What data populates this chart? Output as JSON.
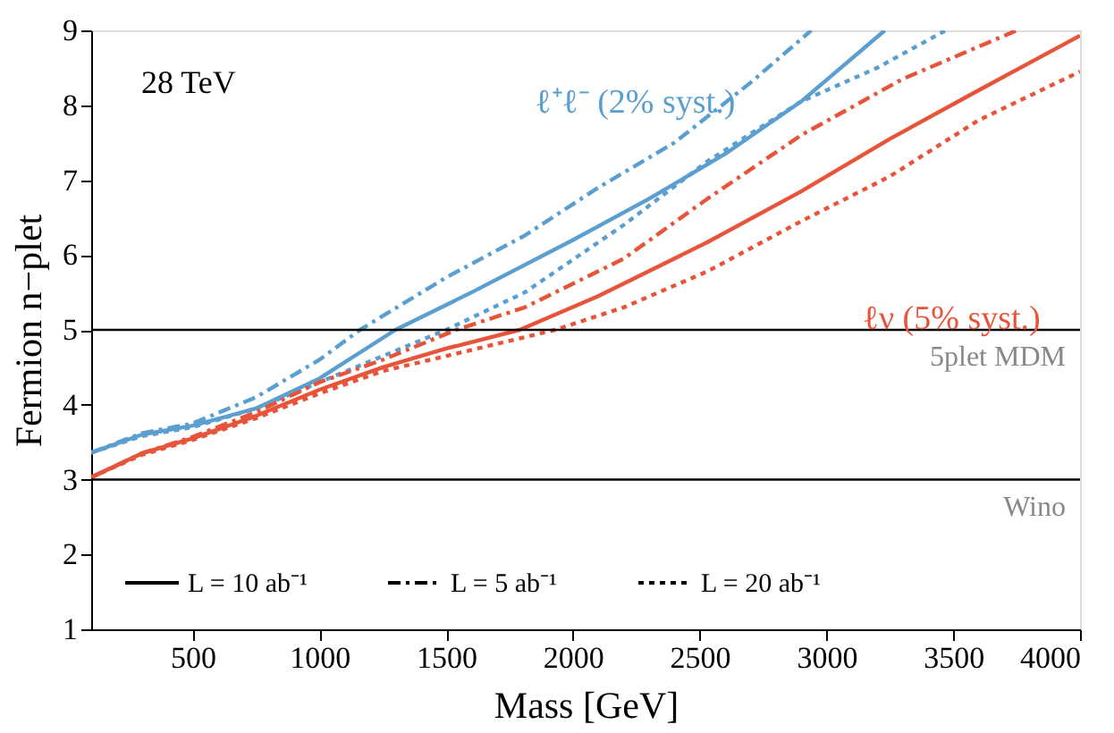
{
  "chart_data": {
    "type": "line",
    "xlabel": "Mass   [GeV]",
    "ylabel": "Fermion  n−plet",
    "xlim": [
      100,
      4000
    ],
    "ylim": [
      1,
      9
    ],
    "xticks": [
      500,
      1000,
      1500,
      2000,
      2500,
      3000,
      3500,
      4000
    ],
    "yticks": [
      1,
      2,
      3,
      4,
      5,
      6,
      7,
      8,
      9
    ],
    "grid": false,
    "legend": "bottom",
    "marker": "none",
    "series": [
      {
        "color": "#5a9fcf",
        "line_style": "solid",
        "x": [
          100,
          300,
          500,
          750,
          1000,
          1300,
          1600,
          2000,
          2300,
          2600,
          2900,
          3230
        ],
        "values": [
          3.36,
          3.6,
          3.72,
          3.95,
          4.35,
          5.0,
          5.5,
          6.2,
          6.75,
          7.35,
          8.05,
          9.0
        ]
      },
      {
        "color": "#5a9fcf",
        "line_style": "dashed",
        "x": [
          100,
          300,
          500,
          750,
          1000,
          1160,
          1500,
          1810,
          2100,
          2400,
          2700,
          2940
        ],
        "values": [
          3.36,
          3.62,
          3.75,
          4.1,
          4.6,
          5.0,
          5.7,
          6.26,
          6.9,
          7.5,
          8.3,
          9.0
        ]
      },
      {
        "color": "#5a9fcf",
        "line_style": "dotted",
        "x": [
          100,
          300,
          500,
          750,
          1000,
          1250,
          1500,
          1810,
          2200,
          2530,
          2900,
          3200,
          3470
        ],
        "values": [
          3.36,
          3.58,
          3.7,
          3.95,
          4.3,
          4.65,
          5.0,
          5.5,
          6.4,
          7.25,
          8.05,
          8.5,
          9.0
        ]
      },
      {
        "color": "#e8543a",
        "line_style": "solid",
        "x": [
          100,
          300,
          500,
          750,
          1000,
          1250,
          1500,
          1790,
          2100,
          2530,
          2900,
          3250,
          3600,
          4000
        ],
        "values": [
          3.03,
          3.35,
          3.55,
          3.85,
          4.2,
          4.5,
          4.75,
          5.0,
          5.45,
          6.17,
          6.85,
          7.55,
          8.2,
          8.93
        ]
      },
      {
        "color": "#e8543a",
        "line_style": "dashed",
        "x": [
          100,
          300,
          500,
          750,
          1000,
          1250,
          1540,
          1810,
          2200,
          2530,
          2900,
          3300,
          3750
        ],
        "values": [
          3.03,
          3.35,
          3.57,
          3.9,
          4.3,
          4.6,
          5.0,
          5.3,
          5.95,
          6.75,
          7.6,
          8.35,
          9.0
        ]
      },
      {
        "color": "#e8543a",
        "line_style": "dotted",
        "x": [
          100,
          300,
          500,
          750,
          1000,
          1250,
          1500,
          1930,
          2200,
          2530,
          2900,
          3250,
          3600,
          4000
        ],
        "values": [
          3.03,
          3.33,
          3.53,
          3.82,
          4.15,
          4.45,
          4.65,
          5.0,
          5.3,
          5.78,
          6.45,
          7.05,
          7.8,
          8.45
        ]
      }
    ],
    "ref_lines": [
      {
        "axis": "y",
        "value": 5,
        "label": "5plet MDM",
        "color": "#000000"
      },
      {
        "axis": "y",
        "value": 3,
        "label": "Wino",
        "color": "#000000"
      }
    ],
    "annotations": [
      "28 TeV",
      "ℓ⁺ℓ⁻ (2% syst.)",
      "ℓν (5% syst.)",
      "L = 10 ab⁻¹",
      "L = 5 ab⁻¹",
      "L = 20 ab⁻¹"
    ]
  }
}
